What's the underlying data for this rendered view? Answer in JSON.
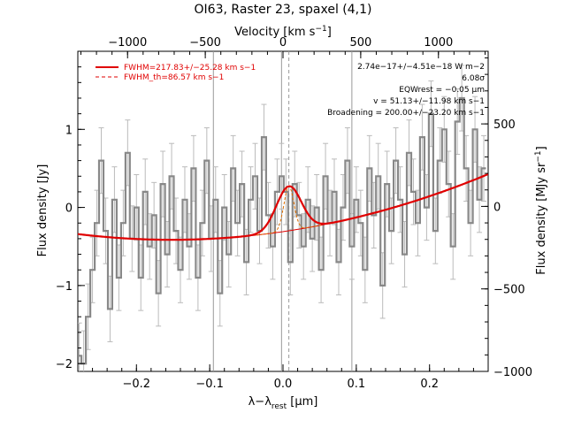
{
  "chart_data": {
    "type": "line",
    "title": "OI63, Raster 23, spaxel (4,1)",
    "xlabel": "λ−λrest [µm]",
    "ylabel": "Flux density [Jy]",
    "top_xlabel": "Velocity [km s−1]",
    "right_ylabel": "Flux density [MJy sr−1]",
    "xlim": [
      -0.28,
      0.28
    ],
    "ylim": [
      -2.1,
      2.0
    ],
    "top_xlim": [
      -1320,
      1320
    ],
    "right_ylim": [
      -1000,
      940
    ],
    "x_ticks": [
      -0.2,
      -0.1,
      0.0,
      0.1,
      0.2
    ],
    "x_tick_labels": [
      "−0.2",
      "−0.1",
      "0.0",
      "0.1",
      "0.2"
    ],
    "y_ticks": [
      -2,
      -1,
      0,
      1
    ],
    "y_tick_labels": [
      "−2",
      "−1",
      "0",
      "1"
    ],
    "top_ticks": [
      -1000,
      -500,
      0,
      500,
      1000
    ],
    "top_tick_labels": [
      "−1000",
      "−500",
      "0",
      "500",
      "1000"
    ],
    "right_ticks": [
      -1000,
      -500,
      0,
      500
    ],
    "right_tick_labels": [
      "−1000",
      "−500",
      "0",
      "500"
    ],
    "vlines_gray": [
      -0.095,
      -0.002,
      0.094
    ],
    "vline_dashed": 0.008,
    "legend": [
      {
        "label": "FWHM=217.83+/−25.28 km s−1",
        "style": "solid"
      },
      {
        "label": "FWHM_th=86.57 km s−1",
        "style": "dashed"
      }
    ],
    "annotations": [
      "2.74e−17+/−4.51e−18 W m−2",
      "6.08σ",
      "EQWrest = −0.05 µm",
      "v = 51.13+/−11.98 km s−1",
      "Broadening = 200.00+/−23.20 km s−1"
    ],
    "spectrum": {
      "x": [
        -0.278,
        -0.272,
        -0.266,
        -0.26,
        -0.254,
        -0.248,
        -0.242,
        -0.236,
        -0.23,
        -0.224,
        -0.218,
        -0.212,
        -0.206,
        -0.2,
        -0.194,
        -0.188,
        -0.182,
        -0.176,
        -0.17,
        -0.164,
        -0.158,
        -0.152,
        -0.146,
        -0.14,
        -0.134,
        -0.128,
        -0.122,
        -0.116,
        -0.11,
        -0.104,
        -0.098,
        -0.092,
        -0.086,
        -0.08,
        -0.074,
        -0.068,
        -0.062,
        -0.056,
        -0.05,
        -0.044,
        -0.038,
        -0.032,
        -0.026,
        -0.02,
        -0.014,
        -0.008,
        -0.002,
        0.004,
        0.01,
        0.016,
        0.022,
        0.028,
        0.034,
        0.04,
        0.046,
        0.052,
        0.058,
        0.064,
        0.07,
        0.076,
        0.082,
        0.088,
        0.094,
        0.1,
        0.106,
        0.112,
        0.118,
        0.124,
        0.13,
        0.136,
        0.142,
        0.148,
        0.154,
        0.16,
        0.166,
        0.172,
        0.178,
        0.184,
        0.19,
        0.196,
        0.202,
        0.208,
        0.214,
        0.22,
        0.226,
        0.232,
        0.238,
        0.244,
        0.25,
        0.256,
        0.262,
        0.268,
        0.274
      ],
      "y": [
        -1.9,
        -2.0,
        -1.4,
        -0.8,
        -0.2,
        0.6,
        -0.3,
        -1.3,
        0.1,
        -0.9,
        -0.2,
        0.7,
        -0.4,
        0.0,
        -0.9,
        0.2,
        -0.5,
        -0.1,
        -1.1,
        0.3,
        -0.6,
        0.4,
        -0.3,
        -0.8,
        0.1,
        -0.5,
        0.5,
        -0.9,
        -0.2,
        0.6,
        -0.4,
        0.1,
        -1.1,
        0.0,
        -0.6,
        0.5,
        -0.2,
        0.3,
        -0.7,
        0.1,
        0.4,
        -0.3,
        0.9,
        -0.1,
        -0.5,
        0.2,
        0.4,
        0.2,
        -0.7,
        0.3,
        -0.1,
        -0.5,
        0.1,
        -0.4,
        0.0,
        -0.8,
        0.4,
        -0.2,
        0.2,
        -0.7,
        0.0,
        0.6,
        -0.5,
        0.1,
        -0.2,
        -0.8,
        0.5,
        -0.1,
        0.4,
        -1.0,
        0.3,
        -0.3,
        0.6,
        0.1,
        -0.6,
        0.7,
        0.2,
        -0.2,
        0.9,
        0.0,
        1.2,
        -0.3,
        0.6,
        1.0,
        0.3,
        -0.5,
        1.1,
        1.4,
        0.5,
        -0.2,
        1.0,
        0.1,
        0.5
      ],
      "err": 0.42
    },
    "fit": {
      "continuum_poly": [
        -0.31,
        1.37,
        4.5
      ],
      "gaussian_amp": 0.57,
      "gaussian_center": 0.008,
      "gaussian_sigma": 0.017,
      "thermal_sigma": 0.0068
    }
  }
}
